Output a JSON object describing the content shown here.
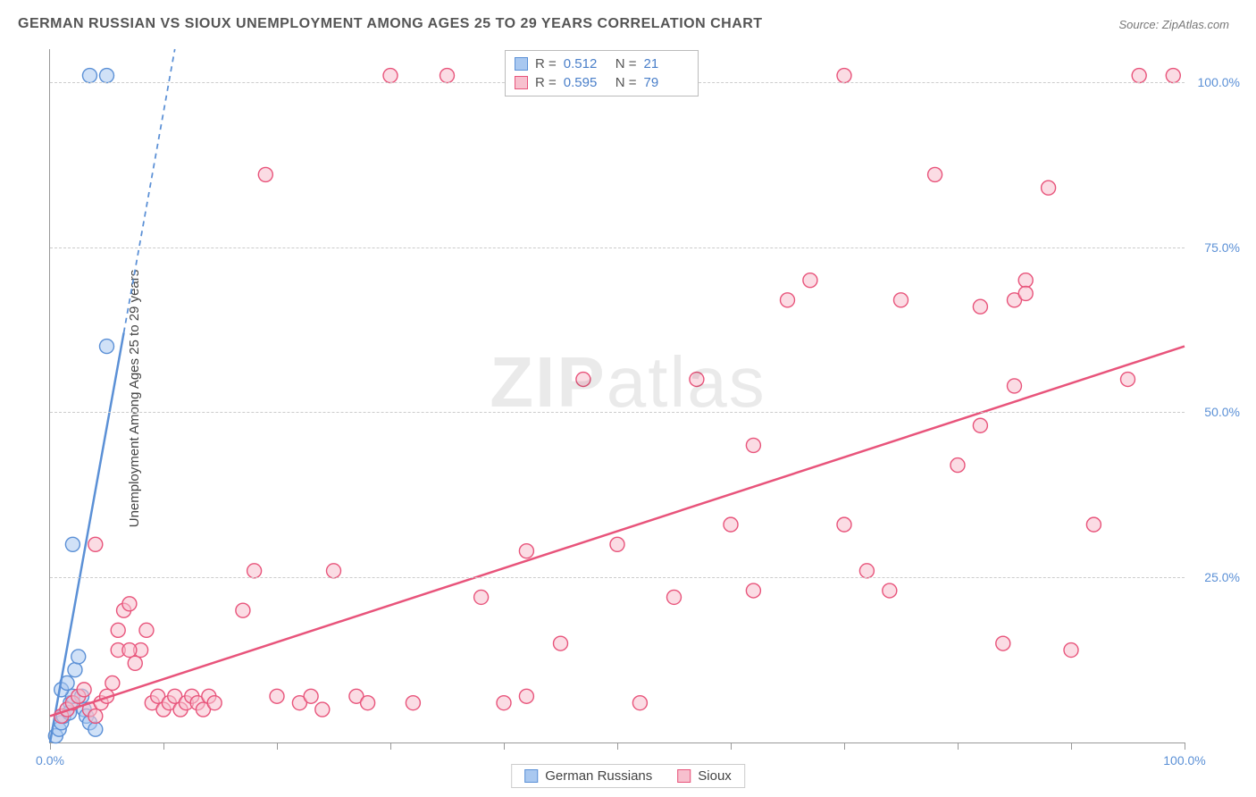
{
  "title": "GERMAN RUSSIAN VS SIOUX UNEMPLOYMENT AMONG AGES 25 TO 29 YEARS CORRELATION CHART",
  "source": "Source: ZipAtlas.com",
  "ylabel": "Unemployment Among Ages 25 to 29 years",
  "watermark": "ZIPatlas",
  "chart": {
    "type": "scatter",
    "background_color": "#ffffff",
    "grid_color": "#cccccc",
    "axis_color": "#999999",
    "tick_label_color": "#5b90d6",
    "tick_label_fontsize": 14,
    "title_fontsize": 16,
    "title_color": "#555555",
    "xlim": [
      0,
      100
    ],
    "ylim": [
      0,
      105
    ],
    "xticks": [
      0,
      10,
      20,
      30,
      40,
      50,
      60,
      70,
      80,
      90,
      100
    ],
    "xtick_labels_shown": {
      "0": "0.0%",
      "100": "100.0%"
    },
    "yticks": [
      25,
      50,
      75,
      100
    ],
    "ytick_labels": [
      "25.0%",
      "50.0%",
      "75.0%",
      "100.0%"
    ],
    "marker_radius": 8,
    "marker_opacity": 0.55,
    "marker_stroke_width": 1.4,
    "trendline_width": 2.5,
    "series": [
      {
        "name": "German Russians",
        "color_fill": "#a9c8f0",
        "color_stroke": "#5b90d6",
        "R": 0.512,
        "N": 21,
        "trendline": {
          "x1": 0,
          "y1": 0,
          "x2": 11,
          "y2": 105,
          "dashed_after_x": 6.5
        },
        "points": [
          [
            0.5,
            1
          ],
          [
            0.8,
            2
          ],
          [
            1,
            3
          ],
          [
            1.2,
            4
          ],
          [
            1.5,
            5
          ],
          [
            1.8,
            6
          ],
          [
            2,
            7
          ],
          [
            1,
            8
          ],
          [
            1.5,
            9
          ],
          [
            2.2,
            11
          ],
          [
            2.5,
            13
          ],
          [
            2.8,
            7
          ],
          [
            3,
            5
          ],
          [
            3.2,
            4
          ],
          [
            3.5,
            3
          ],
          [
            4,
            2
          ],
          [
            2,
            30
          ],
          [
            5,
            60
          ],
          [
            3.5,
            101
          ],
          [
            5,
            101
          ],
          [
            1.7,
            4.5
          ]
        ]
      },
      {
        "name": "Sioux",
        "color_fill": "#f7c0ce",
        "color_stroke": "#e8547b",
        "R": 0.595,
        "N": 79,
        "trendline": {
          "x1": 0,
          "y1": 4,
          "x2": 100,
          "y2": 60,
          "dashed_after_x": 100
        },
        "points": [
          [
            1,
            4
          ],
          [
            1.5,
            5
          ],
          [
            2,
            6
          ],
          [
            2.5,
            7
          ],
          [
            3,
            8
          ],
          [
            3.5,
            5
          ],
          [
            4,
            4
          ],
          [
            4.5,
            6
          ],
          [
            5,
            7
          ],
          [
            5.5,
            9
          ],
          [
            6,
            17
          ],
          [
            6.5,
            20
          ],
          [
            7,
            21
          ],
          [
            7.5,
            12
          ],
          [
            8,
            14
          ],
          [
            8.5,
            17
          ],
          [
            9,
            6
          ],
          [
            9.5,
            7
          ],
          [
            10,
            5
          ],
          [
            10.5,
            6
          ],
          [
            11,
            7
          ],
          [
            11.5,
            5
          ],
          [
            12,
            6
          ],
          [
            12.5,
            7
          ],
          [
            13,
            6
          ],
          [
            13.5,
            5
          ],
          [
            14,
            7
          ],
          [
            14.5,
            6
          ],
          [
            4,
            30
          ],
          [
            6,
            14
          ],
          [
            7,
            14
          ],
          [
            17,
            20
          ],
          [
            18,
            26
          ],
          [
            19,
            86
          ],
          [
            20,
            7
          ],
          [
            22,
            6
          ],
          [
            23,
            7
          ],
          [
            24,
            5
          ],
          [
            25,
            26
          ],
          [
            27,
            7
          ],
          [
            28,
            6
          ],
          [
            30,
            101
          ],
          [
            35,
            101
          ],
          [
            38,
            22
          ],
          [
            40,
            6
          ],
          [
            42,
            7
          ],
          [
            42,
            29
          ],
          [
            45,
            15
          ],
          [
            47,
            55
          ],
          [
            50,
            30
          ],
          [
            52,
            6
          ],
          [
            55,
            22
          ],
          [
            57,
            55
          ],
          [
            60,
            33
          ],
          [
            62,
            23
          ],
          [
            62,
            45
          ],
          [
            65,
            67
          ],
          [
            67,
            70
          ],
          [
            70,
            101
          ],
          [
            70,
            33
          ],
          [
            72,
            26
          ],
          [
            74,
            23
          ],
          [
            75,
            67
          ],
          [
            78,
            86
          ],
          [
            80,
            42
          ],
          [
            82,
            66
          ],
          [
            82,
            48
          ],
          [
            84,
            15
          ],
          [
            85,
            54
          ],
          [
            85,
            67
          ],
          [
            86,
            70
          ],
          [
            86,
            68
          ],
          [
            88,
            84
          ],
          [
            90,
            14
          ],
          [
            92,
            33
          ],
          [
            95,
            55
          ],
          [
            96,
            101
          ],
          [
            99,
            101
          ],
          [
            32,
            6
          ]
        ]
      }
    ]
  },
  "stats_box": {
    "rows": [
      {
        "color_fill": "#a9c8f0",
        "color_stroke": "#5b90d6",
        "R": "0.512",
        "N": "21"
      },
      {
        "color_fill": "#f7c0ce",
        "color_stroke": "#e8547b",
        "R": "0.595",
        "N": "79"
      }
    ],
    "labels": {
      "R": "R  =",
      "N": "N  ="
    }
  },
  "legend": {
    "items": [
      {
        "label": "German Russians",
        "color_fill": "#a9c8f0",
        "color_stroke": "#5b90d6"
      },
      {
        "label": "Sioux",
        "color_fill": "#f7c0ce",
        "color_stroke": "#e8547b"
      }
    ]
  }
}
